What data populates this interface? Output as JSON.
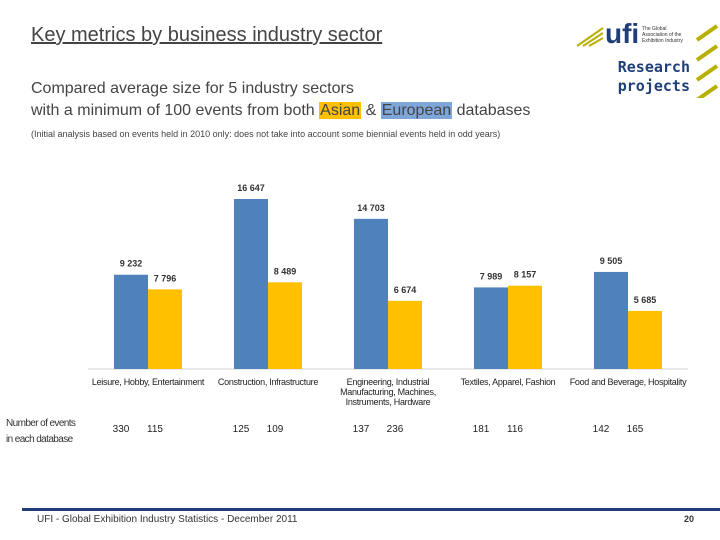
{
  "header": {
    "title": "Key metrics by business industry sector",
    "logo": {
      "brand": "ufi",
      "tagline": [
        "The Global",
        "Association of the",
        "Exhibition Industry"
      ],
      "badge": [
        "Research",
        "projects"
      ]
    }
  },
  "chart_data": {
    "type": "bar",
    "subtitle": [
      "Compared average size for 5 industry sectors",
      "with a minimum of 100 events from both"
    ],
    "subtitle_joiner": "&",
    "subtitle_end": "databases",
    "note": "(Initial analysis based on events held in 2010 only: does not take into account some biennial events held in odd years)",
    "categories": [
      "Leisure, Hobby, Entertainment",
      "Construction, Infrastructure",
      "Engineering, Industrial Manufacturing, Machines, Instruments, Hardware",
      "Textiles, Apparel, Fashion",
      "Food and Beverage, Hospitality"
    ],
    "series": [
      {
        "name": "Asian",
        "color": "#4f81bd",
        "values": [
          9232,
          16647,
          14703,
          7989,
          9505
        ],
        "value_labels": [
          "9 232",
          "16 647",
          "14 703",
          "7 989",
          "9 505"
        ]
      },
      {
        "name": "European",
        "color": "#ffc000",
        "values": [
          7796,
          8489,
          6674,
          8157,
          5685
        ],
        "value_labels": [
          "7 796",
          "8 489",
          "6 674",
          "8 157",
          "5 685"
        ]
      }
    ],
    "event_counts": {
      "label": [
        "Number of events",
        "in each database"
      ],
      "values": [
        [
          330,
          115
        ],
        [
          125,
          109
        ],
        [
          137,
          236
        ],
        [
          181,
          116
        ],
        [
          142,
          165
        ]
      ]
    }
  },
  "footer": {
    "source": "UFI - Global Exhibition Industry Statistics - December 2011",
    "page": "20"
  }
}
